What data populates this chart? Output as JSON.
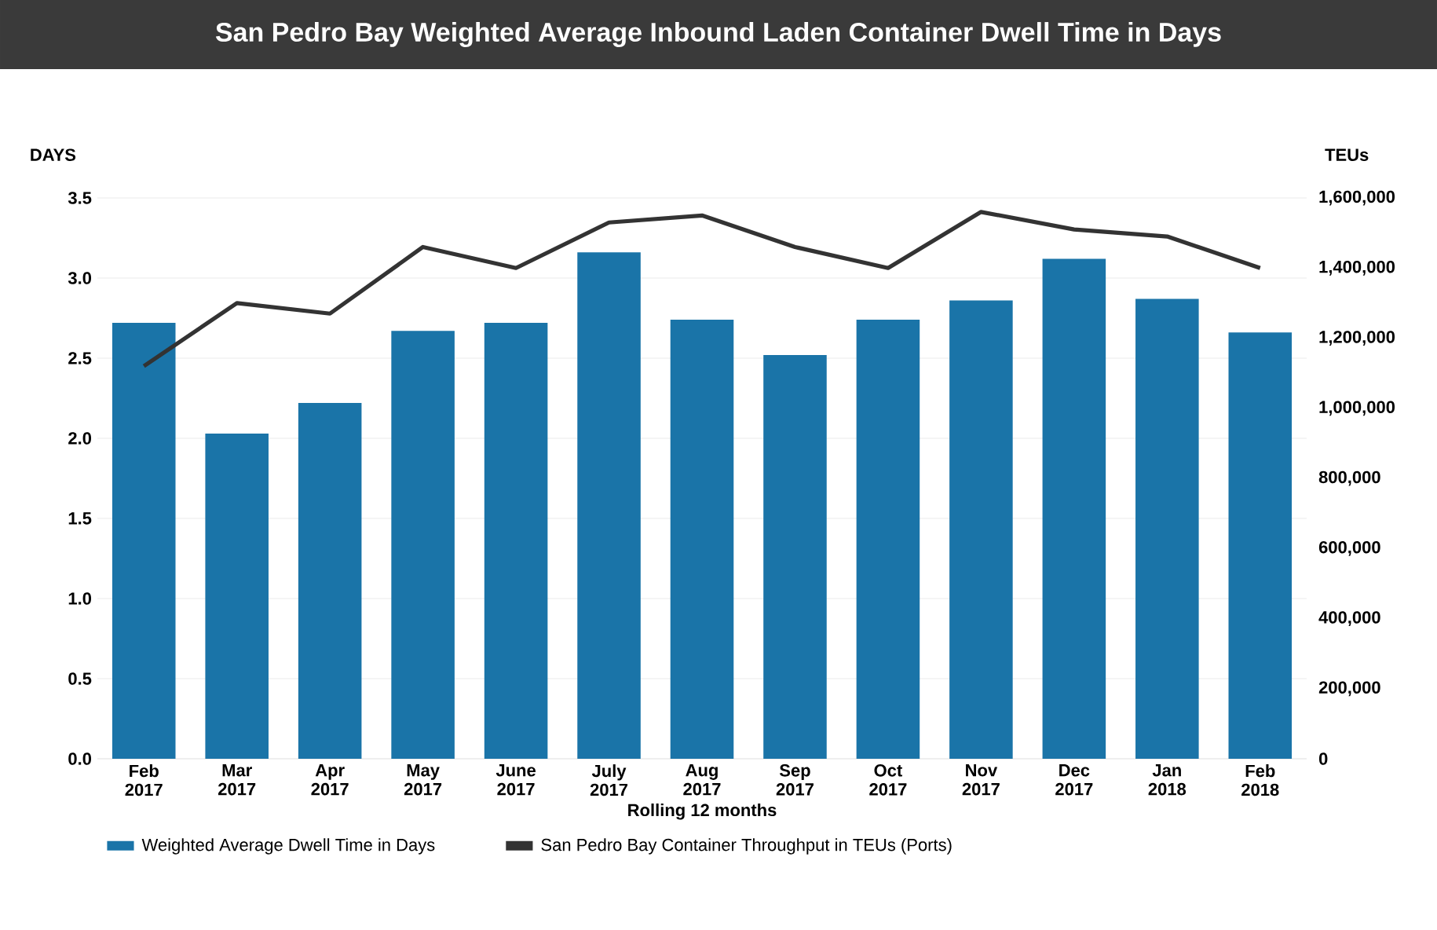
{
  "chart_data": {
    "type": "bar",
    "title": "San Pedro Bay Weighted Average Inbound Laden Container Dwell Time in Days",
    "xlabel": "Rolling 12 months",
    "ylabel": "DAYS",
    "y2label": "TEUs",
    "categories": [
      "Feb 2017",
      "Mar 2017",
      "Apr 2017",
      "May 2017",
      "June 2017",
      "July 2017",
      "Aug 2017",
      "Sep 2017",
      "Oct 2017",
      "Nov 2017",
      "Dec 2017",
      "Jan 2018",
      "Feb 2018"
    ],
    "series": [
      {
        "name": "Weighted Average Dwell Time in Days",
        "color": "#1a74a8",
        "values": [
          2.72,
          2.03,
          2.22,
          2.67,
          2.72,
          3.16,
          2.74,
          2.52,
          2.74,
          2.86,
          3.12,
          2.87,
          2.66
        ]
      },
      {
        "name": "San Pedro Bay Container Throughput in TEUs (Ports)",
        "color": "#333333",
        "type": "line",
        "axis": "y2",
        "values": [
          1120000,
          1300000,
          1270000,
          1460000,
          1400000,
          1530000,
          1550000,
          1460000,
          1400000,
          1560000,
          1510000,
          1490000,
          1400000
        ]
      }
    ],
    "ylim": [
      0,
      3.5
    ],
    "yticks": [
      {
        "value": 0,
        "label": "0.0"
      },
      {
        "value": 0.5,
        "label": "0.5"
      },
      {
        "value": 1,
        "label": "1.0"
      },
      {
        "value": 1.5,
        "label": "1.5"
      },
      {
        "value": 2,
        "label": "2.0"
      },
      {
        "value": 2.5,
        "label": "2.5"
      },
      {
        "value": 3,
        "label": "3.0"
      },
      {
        "value": 3.5,
        "label": "3.5"
      }
    ],
    "y2lim": [
      0,
      1600000
    ],
    "y2ticks": [
      0,
      {
        "value": 200000,
        "label": "200,000"
      },
      {
        "value": 400000,
        "label": "400,000"
      },
      {
        "value": 600000,
        "label": "600,000"
      },
      {
        "value": 800000,
        "label": "800,000"
      },
      {
        "value": 1000000,
        "label": "1,000,000"
      },
      {
        "value": 1200000,
        "label": "1,200,000"
      },
      {
        "value": 1400000,
        "label": "1,400,000"
      },
      {
        "value": 1600000,
        "label": "1,600,000"
      }
    ],
    "grid": "y",
    "legend": "bottom",
    "marker": "none",
    "line_style": "solid"
  }
}
